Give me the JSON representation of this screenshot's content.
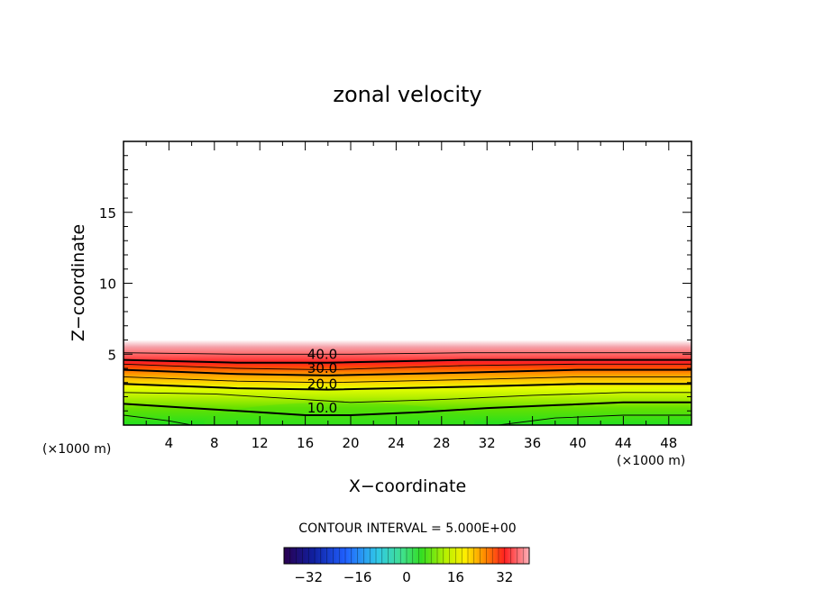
{
  "chart_data": {
    "type": "contour",
    "title": "zonal velocity",
    "xlabel": "X−coordinate",
    "ylabel": "Z−coordinate",
    "x_unit_note": "(×1000 m)",
    "z_unit_note": "(×1000 m)",
    "xlim": [
      0,
      50
    ],
    "ylim": [
      0,
      20
    ],
    "x_ticks": [
      4,
      8,
      12,
      16,
      20,
      24,
      28,
      32,
      36,
      40,
      44,
      48
    ],
    "y_ticks": [
      5,
      10,
      15
    ],
    "contour_interval_text": "CONTOUR INTERVAL = 5.000E+00",
    "colorbar": {
      "range": [
        -40,
        40
      ],
      "ticks": [
        -32,
        -16,
        0,
        16,
        32
      ],
      "tick_labels": [
        "−32",
        "−16",
        "0",
        "16",
        "32"
      ]
    },
    "contour_labels": [
      {
        "text": "40.0",
        "x": 17.5,
        "z": 5.0
      },
      {
        "text": "30.0",
        "x": 17.5,
        "z": 4.0
      },
      {
        "text": "20.0",
        "x": 17.5,
        "z": 2.9
      },
      {
        "text": "10.0",
        "x": 17.5,
        "z": 1.2
      }
    ],
    "contours": [
      {
        "level": 45,
        "z": [
          [
            0,
            5.1
          ],
          [
            10,
            5.0
          ],
          [
            20,
            5.0
          ],
          [
            30,
            5.1
          ],
          [
            40,
            5.1
          ],
          [
            50,
            5.1
          ]
        ]
      },
      {
        "level": 40,
        "z": [
          [
            0,
            4.6
          ],
          [
            10,
            4.4
          ],
          [
            18,
            4.4
          ],
          [
            30,
            4.6
          ],
          [
            40,
            4.6
          ],
          [
            50,
            4.6
          ]
        ]
      },
      {
        "level": 35,
        "z": [
          [
            0,
            4.3
          ],
          [
            10,
            4.0
          ],
          [
            18,
            3.9
          ],
          [
            30,
            4.2
          ],
          [
            40,
            4.3
          ],
          [
            50,
            4.3
          ]
        ]
      },
      {
        "level": 30,
        "z": [
          [
            0,
            3.9
          ],
          [
            10,
            3.6
          ],
          [
            18,
            3.5
          ],
          [
            30,
            3.7
          ],
          [
            40,
            3.9
          ],
          [
            50,
            3.9
          ]
        ]
      },
      {
        "level": 25,
        "z": [
          [
            0,
            3.4
          ],
          [
            10,
            3.1
          ],
          [
            18,
            3.0
          ],
          [
            30,
            3.2
          ],
          [
            40,
            3.4
          ],
          [
            50,
            3.4
          ]
        ]
      },
      {
        "level": 20,
        "z": [
          [
            0,
            2.9
          ],
          [
            10,
            2.6
          ],
          [
            18,
            2.5
          ],
          [
            30,
            2.7
          ],
          [
            40,
            2.9
          ],
          [
            50,
            2.9
          ]
        ]
      },
      {
        "level": 15,
        "z": [
          [
            0,
            2.3
          ],
          [
            8,
            2.2
          ],
          [
            14,
            1.9
          ],
          [
            20,
            1.6
          ],
          [
            28,
            1.8
          ],
          [
            36,
            2.1
          ],
          [
            44,
            2.3
          ],
          [
            50,
            2.3
          ]
        ]
      },
      {
        "level": 10,
        "z": [
          [
            0,
            1.5
          ],
          [
            6,
            1.2
          ],
          [
            12,
            0.9
          ],
          [
            16,
            0.7
          ],
          [
            20,
            0.7
          ],
          [
            26,
            0.9
          ],
          [
            32,
            1.2
          ],
          [
            38,
            1.4
          ],
          [
            44,
            1.6
          ],
          [
            50,
            1.6
          ]
        ]
      },
      {
        "level": 5,
        "z": [
          [
            0,
            0.7
          ],
          [
            4,
            0.3
          ],
          [
            6,
            0.0
          ]
        ]
      },
      {
        "level": 5,
        "z": [
          [
            33,
            0.0
          ],
          [
            38,
            0.5
          ],
          [
            44,
            0.7
          ],
          [
            50,
            0.7
          ]
        ]
      }
    ]
  }
}
